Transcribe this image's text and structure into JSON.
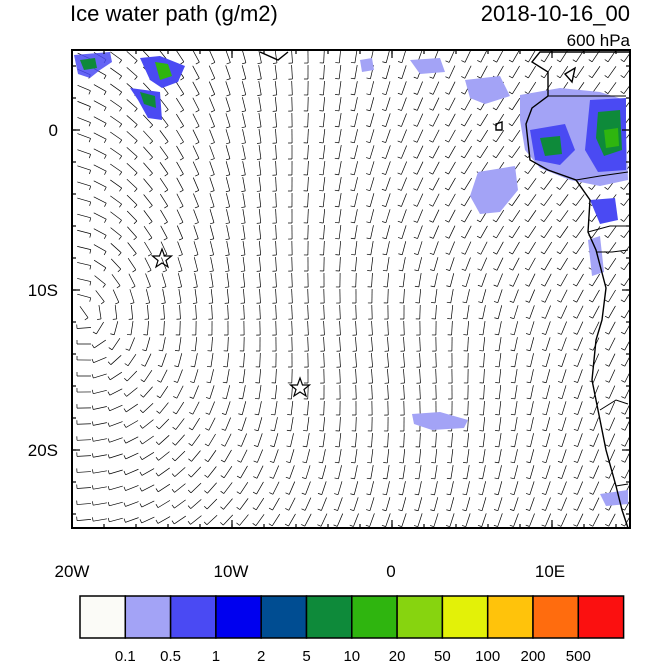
{
  "header": {
    "title": "Ice water path (g/m2)",
    "datetime": "2018-10-16_00",
    "level": "600 hPa"
  },
  "axes": {
    "y_ticks": [
      "0",
      "10S",
      "20S"
    ],
    "x_ticks": [
      "20W",
      "10W",
      "0",
      "10E"
    ]
  },
  "colorbar": {
    "colors": [
      "#fbfbf7",
      "#a3a3f6",
      "#4a4af3",
      "#0000ef",
      "#004d92",
      "#0e8a3a",
      "#2fb50f",
      "#87d40f",
      "#e3f108",
      "#ffc30b",
      "#ff6c0e",
      "#fb1010"
    ],
    "labels": [
      "0.1",
      "0.5",
      "1",
      "2",
      "5",
      "10",
      "20",
      "50",
      "100",
      "200",
      "500"
    ]
  },
  "markers": [
    {
      "name": "star-marker",
      "lon": -14.5,
      "lat": -8
    },
    {
      "name": "star-marker",
      "lon": -5.7,
      "lat": -16
    }
  ]
}
